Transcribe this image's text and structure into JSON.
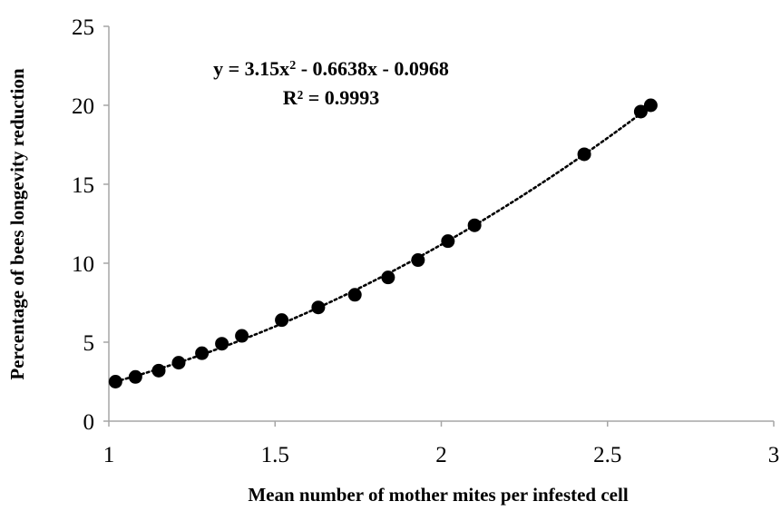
{
  "chart_data": {
    "type": "scatter",
    "title": "",
    "xlabel": "Mean number  of mother mites per infested cell",
    "ylabel": "Percentage of bees longevity reduction",
    "xlim": [
      1,
      3
    ],
    "ylim": [
      0,
      25
    ],
    "x_ticks": [
      "1",
      "1.5",
      "2",
      "2.5",
      "3"
    ],
    "y_ticks": [
      "0",
      "5",
      "10",
      "15",
      "20",
      "25"
    ],
    "grid": false,
    "legend": "none",
    "annotations": {
      "equation_base": "y = 3.15x",
      "equation_sup": "2",
      "equation_rest": " - 0.6638x - 0.0968",
      "r_squared": "R² = 0.9993"
    },
    "series": [
      {
        "x": [
          1.02,
          1.08,
          1.15,
          1.21,
          1.28,
          1.34,
          1.4,
          1.52,
          1.63,
          1.74,
          1.84,
          1.93,
          2.02,
          2.1,
          2.43,
          2.6,
          2.63
        ],
        "y": [
          2.5,
          2.8,
          3.2,
          3.7,
          4.3,
          4.9,
          5.4,
          6.4,
          7.2,
          8.0,
          9.1,
          10.2,
          11.4,
          12.4,
          16.9,
          19.6,
          20.0
        ]
      }
    ],
    "trendline": {
      "type": "polynomial",
      "coefficients": [
        3.15,
        -0.6638,
        -0.0968
      ],
      "x_range": [
        1.02,
        2.64
      ],
      "style": "dotted"
    },
    "colors": {
      "marker": "#000000",
      "axis": "#a6a6a6",
      "trendline": "#000000"
    }
  }
}
